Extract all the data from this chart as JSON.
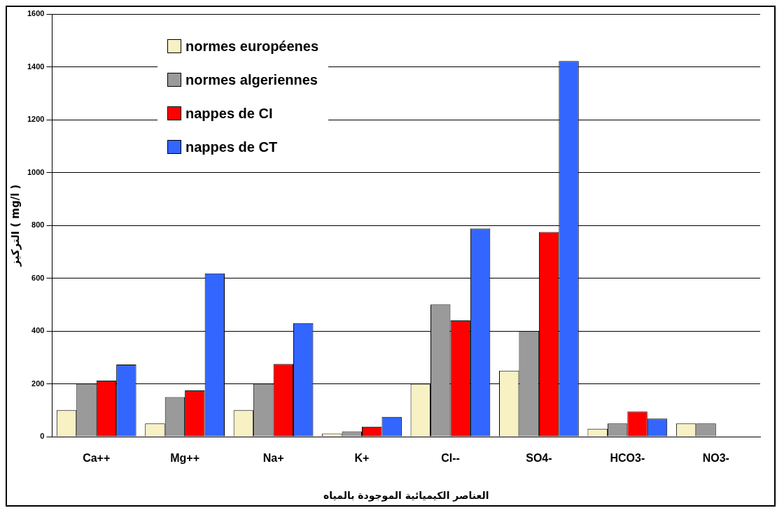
{
  "chart_data": {
    "type": "bar",
    "xlabel": "العناصر الكيميائية الموجودة بالمياه",
    "ylabel": "التركيز ( mg/l )",
    "categories": [
      "Ca++",
      "Mg++",
      "Na+",
      "K+",
      "Cl--",
      "SO4-",
      "HCO3-",
      "NO3-"
    ],
    "series": [
      {
        "name": "normes européenes",
        "color": "#f7f1c4",
        "values": [
          100,
          50,
          100,
          12,
          200,
          250,
          30,
          50
        ]
      },
      {
        "name": "normes algeriennes",
        "color": "#9a9a9a",
        "values": [
          200,
          150,
          200,
          20,
          500,
          400,
          50,
          50
        ]
      },
      {
        "name": "nappes de CI",
        "color": "#ff0000",
        "values": [
          212,
          175,
          275,
          38,
          440,
          775,
          95,
          null
        ]
      },
      {
        "name": "nappes de CT",
        "color": "#3366ff",
        "values": [
          273,
          618,
          430,
          75,
          788,
          1422,
          68,
          null
        ]
      }
    ],
    "ylim": [
      0,
      1600
    ],
    "yticks": [
      0,
      200,
      400,
      600,
      800,
      1000,
      1200,
      1400,
      1600
    ],
    "grid": "y",
    "legend": "top left"
  }
}
